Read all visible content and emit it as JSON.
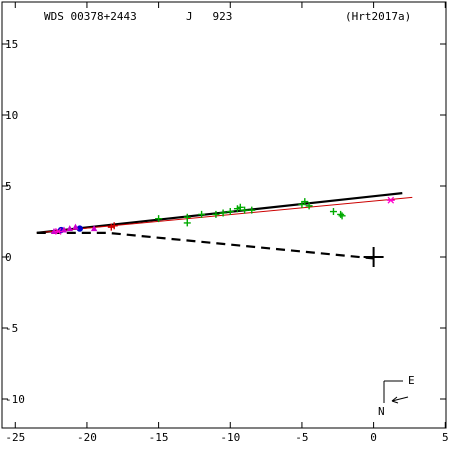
{
  "header": {
    "star_id": "WDS 00378+2443",
    "discoverer": "J   923",
    "reference": "(Hrt2017a)"
  },
  "compass": {
    "east_label": "E",
    "north_label": "N"
  },
  "chart_data": {
    "type": "scatter",
    "title": "",
    "xlabel": "",
    "ylabel": "",
    "xlim": [
      -25,
      5
    ],
    "ylim": [
      -11.5,
      17
    ],
    "x_ticks": [
      -25,
      -20,
      -15,
      -10,
      -5,
      0,
      5
    ],
    "y_ticks": [
      -10,
      -5,
      0,
      5,
      10,
      15
    ],
    "grid": false,
    "primary_star": [
      0,
      0
    ],
    "series": [
      {
        "marker": "plus",
        "color": "#00aa00",
        "points": [
          [
            -15,
            2.7
          ],
          [
            -13,
            2.8
          ],
          [
            -13,
            2.4
          ],
          [
            -12,
            3.0
          ],
          [
            -11,
            3.0
          ],
          [
            -10.5,
            3.1
          ],
          [
            -10,
            3.2
          ],
          [
            -9.5,
            3.4
          ],
          [
            -9.3,
            3.5
          ],
          [
            -9,
            3.3
          ],
          [
            -8.5,
            3.3
          ],
          [
            -5,
            3.7
          ],
          [
            -4.8,
            3.9
          ],
          [
            -4.5,
            3.6
          ],
          [
            -2.8,
            3.2
          ],
          [
            -2.3,
            3.0
          ],
          [
            -2.2,
            2.9
          ]
        ]
      },
      {
        "marker": "plus",
        "color": "#cc0000",
        "points": [
          [
            -18.3,
            2.1
          ],
          [
            -18.1,
            2.2
          ]
        ]
      },
      {
        "marker": "dot",
        "color": "#0000cc",
        "points": [
          [
            -20.5,
            2.0
          ],
          [
            -21.8,
            1.9
          ]
        ]
      },
      {
        "marker": "triangle",
        "color": "#cc00cc",
        "points": [
          [
            -19.5,
            2.0
          ],
          [
            -20.8,
            2.1
          ],
          [
            -21.2,
            2.0
          ],
          [
            -22.3,
            1.8
          ],
          [
            -21.6,
            1.9
          ]
        ]
      },
      {
        "marker": "asterisk",
        "color": "#ff00cc",
        "points": [
          [
            1.2,
            4.0
          ],
          [
            -22.0,
            1.8
          ]
        ]
      }
    ],
    "orbit_lines": [
      {
        "style": "solid",
        "color": "#000000",
        "width": 2.2,
        "points": [
          [
            -23.5,
            1.7
          ],
          [
            2.0,
            4.5
          ]
        ]
      },
      {
        "style": "solid",
        "color": "#cc0000",
        "width": 1,
        "points": [
          [
            -23.5,
            1.7
          ],
          [
            2.7,
            4.2
          ]
        ]
      },
      {
        "style": "dashed",
        "color": "#000000",
        "width": 2.2,
        "points": [
          [
            -23.5,
            1.7
          ],
          [
            -18.5,
            1.7
          ],
          [
            0,
            -0.1
          ]
        ]
      }
    ]
  }
}
